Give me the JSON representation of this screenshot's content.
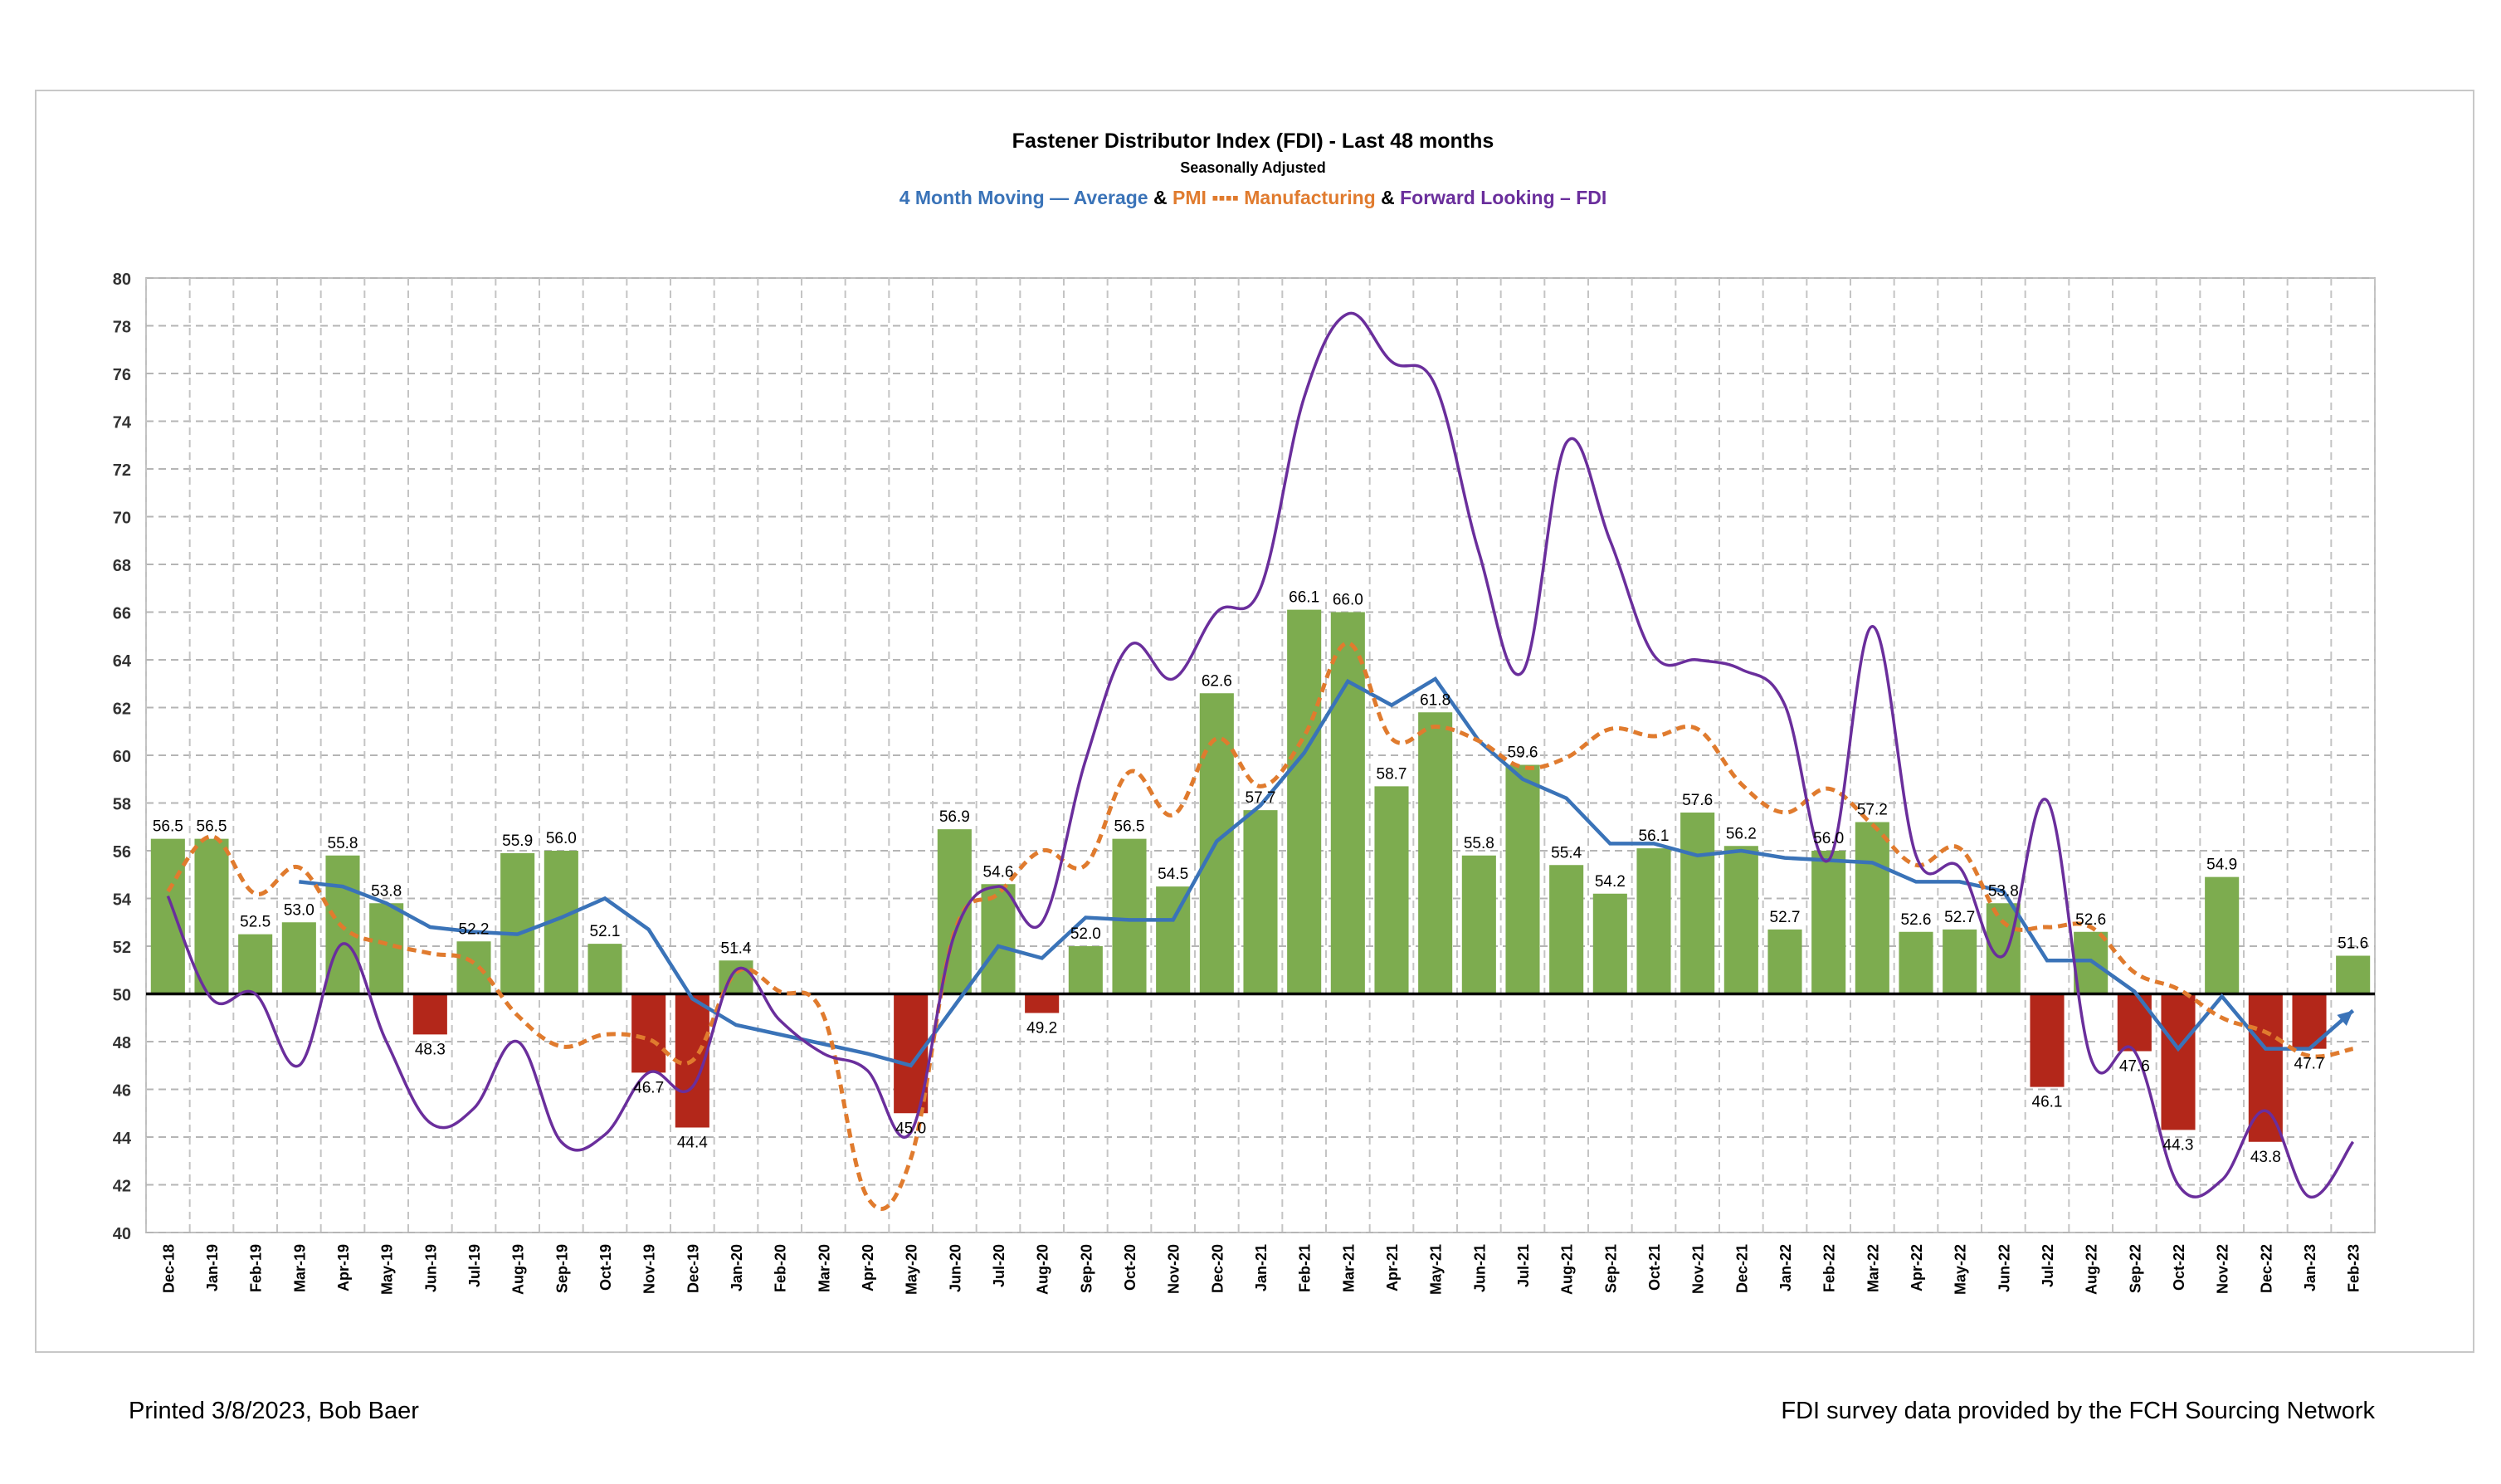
{
  "chart_data": {
    "type": "bar",
    "title": "Fastener Distributor Index (FDI) - Last 48 months",
    "subtitle": "Seasonally Adjusted",
    "legend": [
      {
        "label": "4 Month Moving — Average",
        "color": "#3a73b8",
        "style": "solid"
      },
      {
        "sep": "&"
      },
      {
        "label": "PMI ▪▪▪▪ Manufacturing",
        "color": "#e07b2e",
        "style": "dashed"
      },
      {
        "sep": "&"
      },
      {
        "label": "Forward Looking – FDI",
        "color": "#6a2e9c",
        "style": "solid"
      }
    ],
    "ylim": [
      40,
      80
    ],
    "yticks": [
      40,
      42,
      44,
      46,
      48,
      50,
      52,
      54,
      56,
      58,
      60,
      62,
      64,
      66,
      68,
      70,
      72,
      74,
      76,
      78,
      80
    ],
    "baseline": 50,
    "grid": true,
    "categories": [
      "Dec-18",
      "Jan-19",
      "Feb-19",
      "Mar-19",
      "Apr-19",
      "May-19",
      "Jun-19",
      "Jul-19",
      "Aug-19",
      "Sep-19",
      "Oct-19",
      "Nov-19",
      "Dec-19",
      "Jan-20",
      "Feb-20",
      "Mar-20",
      "Apr-20",
      "May-20",
      "Jun-20",
      "Jul-20",
      "Aug-20",
      "Sep-20",
      "Oct-20",
      "Nov-20",
      "Dec-20",
      "Jan-21",
      "Feb-21",
      "Mar-21",
      "Apr-21",
      "May-21",
      "Jun-21",
      "Jul-21",
      "Aug-21",
      "Sep-21",
      "Oct-21",
      "Nov-21",
      "Dec-21",
      "Jan-22",
      "Feb-22",
      "Mar-22",
      "Apr-22",
      "May-22",
      "Jun-22",
      "Jul-22",
      "Aug-22",
      "Sep-22",
      "Oct-22",
      "Nov-22",
      "Dec-22",
      "Jan-23",
      "Feb-23"
    ],
    "series": [
      {
        "name": "FDI",
        "kind": "bar",
        "positive_color": "#7dac4f",
        "negative_color": "#b3271a",
        "values": [
          56.5,
          56.5,
          52.5,
          53.0,
          55.8,
          53.8,
          48.3,
          52.2,
          55.9,
          56.0,
          52.1,
          46.7,
          44.4,
          51.4,
          null,
          null,
          null,
          45.0,
          56.9,
          54.6,
          49.2,
          52.0,
          56.5,
          54.5,
          62.6,
          57.7,
          66.1,
          66.0,
          58.7,
          61.8,
          55.8,
          59.6,
          55.4,
          54.2,
          56.1,
          57.6,
          56.2,
          52.7,
          56.0,
          57.2,
          52.6,
          52.7,
          53.8,
          46.1,
          52.6,
          47.6,
          44.3,
          54.9,
          43.8,
          47.7,
          51.6
        ],
        "labels": [
          "56.5",
          "56.5",
          "52.5",
          "53.0",
          "55.8",
          "53.8",
          "48.3",
          "52.2",
          "55.9",
          "56.0",
          "52.1",
          "46.7",
          "44.4",
          "51.4",
          "",
          "",
          "",
          "45.0",
          "56.9",
          "54.6",
          "49.2",
          "52.0",
          "56.5",
          "54.5",
          "62.6",
          "57.7",
          "66.1",
          "66.0",
          "58.7",
          "61.8",
          "55.8",
          "59.6",
          "55.4",
          "54.2",
          "56.1",
          "57.6",
          "56.2",
          "52.7",
          "56.0",
          "57.2",
          "52.6",
          "52.7",
          "53.8",
          "46.1",
          "52.6",
          "47.6",
          "44.3",
          "54.9",
          "43.8",
          "47.7",
          "51.6"
        ]
      },
      {
        "name": "4 Month Moving Average",
        "kind": "line",
        "color": "#3a73b8",
        "values": [
          null,
          null,
          null,
          54.7,
          54.5,
          53.8,
          52.8,
          52.6,
          52.5,
          53.2,
          54.0,
          52.7,
          49.8,
          48.7,
          48.3,
          47.9,
          47.5,
          47.0,
          49.5,
          52.0,
          51.5,
          53.2,
          53.1,
          53.1,
          56.4,
          57.9,
          60.1,
          63.1,
          62.1,
          63.2,
          60.6,
          59.0,
          58.2,
          56.3,
          56.3,
          55.8,
          56.0,
          55.7,
          55.6,
          55.5,
          54.7,
          54.7,
          54.3,
          51.4,
          51.4,
          50.1,
          47.7,
          49.9,
          47.7,
          47.7,
          49.3
        ]
      },
      {
        "name": "PMI Manufacturing",
        "kind": "line",
        "color": "#e07b2e",
        "dashed": true,
        "values": [
          54.3,
          56.6,
          54.2,
          55.3,
          52.8,
          52.1,
          51.7,
          51.3,
          49.1,
          47.8,
          48.3,
          48.1,
          47.2,
          50.9,
          50.1,
          49.1,
          41.5,
          43.1,
          52.6,
          54.2,
          56.0,
          55.4,
          59.3,
          57.5,
          60.7,
          58.7,
          60.8,
          64.7,
          60.7,
          61.2,
          60.6,
          59.5,
          59.9,
          61.1,
          60.8,
          61.1,
          58.8,
          57.6,
          58.6,
          57.1,
          55.4,
          56.1,
          53.0,
          52.8,
          52.8,
          50.9,
          50.2,
          49.0,
          48.4,
          47.4,
          47.7
        ]
      },
      {
        "name": "Forward Looking FDI",
        "kind": "line",
        "color": "#6a2e9c",
        "values": [
          54.1,
          49.8,
          50.0,
          47.0,
          52.1,
          48.0,
          44.6,
          45.2,
          48.0,
          43.8,
          44.1,
          46.7,
          46.1,
          51.0,
          48.9,
          47.5,
          46.8,
          44.2,
          52.5,
          54.5,
          53.0,
          59.8,
          64.6,
          63.2,
          66.0,
          67.0,
          75.0,
          78.5,
          76.5,
          75.5,
          68.5,
          63.5,
          73.1,
          69.0,
          64.2,
          64.0,
          63.6,
          62.1,
          55.6,
          65.4,
          55.8,
          55.3,
          51.6,
          58.1,
          47.3,
          47.6,
          42.0,
          42.2,
          45.1,
          41.5,
          43.8
        ]
      }
    ]
  },
  "footer": {
    "left": "Printed 3/8/2023, Bob Baer",
    "right": "FDI survey data provided by the FCH Sourcing Network"
  }
}
